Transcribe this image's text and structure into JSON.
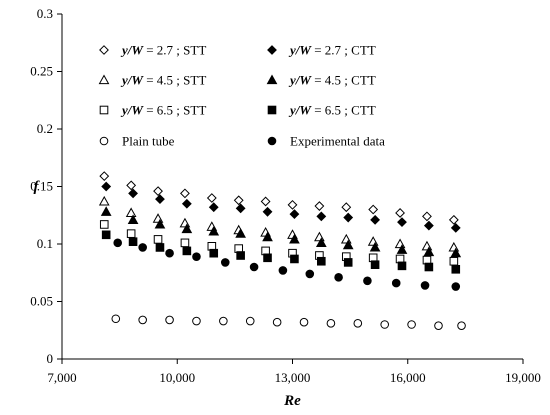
{
  "chart_data": {
    "type": "scatter",
    "title": "",
    "xlabel": "Re",
    "ylabel": "f",
    "xlim": [
      7000,
      19000
    ],
    "ylim": [
      0,
      0.3
    ],
    "x_ticks": [
      7000,
      10000,
      13000,
      16000,
      19000
    ],
    "x_tick_labels": [
      "7,000",
      "10,000",
      "13,000",
      "16,000",
      "19,000"
    ],
    "y_ticks": [
      0,
      0.05,
      0.1,
      0.15,
      0.2,
      0.25,
      0.3
    ],
    "y_tick_labels": [
      "0",
      "0.05",
      "0.1",
      "0.15",
      "0.2",
      "0.25",
      "0.3"
    ],
    "grid": false,
    "legend_position": "top-left",
    "series": [
      {
        "name": "y/W = 2.7 ;  STT",
        "ratio": "y/W",
        "label_rest": " = 2.7 ;  STT",
        "marker": "diamond-open",
        "x": [
          8100,
          8800,
          9500,
          10200,
          10900,
          11600,
          12300,
          13000,
          13700,
          14400,
          15100,
          15800,
          16500,
          17200
        ],
        "y": [
          0.159,
          0.151,
          0.146,
          0.144,
          0.14,
          0.138,
          0.137,
          0.134,
          0.133,
          0.132,
          0.13,
          0.127,
          0.124,
          0.121
        ]
      },
      {
        "name": "y/W = 2.7 ;  CTT",
        "ratio": "y/W",
        "label_rest": " = 2.7 ;  CTT",
        "marker": "diamond-filled",
        "x": [
          8150,
          8850,
          9550,
          10250,
          10950,
          11650,
          12350,
          13050,
          13750,
          14450,
          15150,
          15850,
          16550,
          17250
        ],
        "y": [
          0.15,
          0.144,
          0.139,
          0.135,
          0.132,
          0.131,
          0.128,
          0.126,
          0.124,
          0.123,
          0.121,
          0.119,
          0.116,
          0.114
        ]
      },
      {
        "name": "y/W = 4.5 ;  STT",
        "ratio": "y/W",
        "label_rest": " = 4.5 ;  STT",
        "marker": "triangle-open",
        "x": [
          8100,
          8800,
          9500,
          10200,
          10900,
          11600,
          12300,
          13000,
          13700,
          14400,
          15100,
          15800,
          16500,
          17200
        ],
        "y": [
          0.137,
          0.127,
          0.122,
          0.118,
          0.115,
          0.112,
          0.11,
          0.108,
          0.106,
          0.104,
          0.102,
          0.1,
          0.098,
          0.097
        ]
      },
      {
        "name": "y/W = 4.5 ;  CTT",
        "ratio": "y/W",
        "label_rest": " = 4.5 ;  CTT",
        "marker": "triangle-filled",
        "x": [
          8150,
          8850,
          9550,
          10250,
          10950,
          11650,
          12350,
          13050,
          13750,
          14450,
          15150,
          15850,
          16550,
          17250
        ],
        "y": [
          0.128,
          0.121,
          0.117,
          0.113,
          0.111,
          0.109,
          0.106,
          0.104,
          0.101,
          0.099,
          0.097,
          0.095,
          0.093,
          0.092
        ]
      },
      {
        "name": "y/W = 6.5 ;  STT",
        "ratio": "y/W",
        "label_rest": " = 6.5 ;  STT",
        "marker": "square-open",
        "x": [
          8100,
          8800,
          9500,
          10200,
          10900,
          11600,
          12300,
          13000,
          13700,
          14400,
          15100,
          15800,
          16500,
          17200
        ],
        "y": [
          0.117,
          0.109,
          0.104,
          0.101,
          0.098,
          0.096,
          0.094,
          0.092,
          0.09,
          0.089,
          0.088,
          0.087,
          0.086,
          0.085
        ]
      },
      {
        "name": "y/W = 6.5 ;  CTT",
        "ratio": "y/W",
        "label_rest": " = 6.5 ;  CTT",
        "marker": "square-filled",
        "x": [
          8150,
          8850,
          9550,
          10250,
          10950,
          11650,
          12350,
          13050,
          13750,
          14450,
          15150,
          15850,
          16550,
          17250
        ],
        "y": [
          0.108,
          0.102,
          0.097,
          0.094,
          0.092,
          0.09,
          0.088,
          0.087,
          0.085,
          0.084,
          0.082,
          0.081,
          0.08,
          0.078
        ]
      },
      {
        "name": "Plain tube",
        "marker": "circle-open",
        "x": [
          8400,
          9100,
          9800,
          10500,
          11200,
          11900,
          12600,
          13300,
          14000,
          14700,
          15400,
          16100,
          16800,
          17400
        ],
        "y": [
          0.035,
          0.034,
          0.034,
          0.033,
          0.033,
          0.033,
          0.032,
          0.032,
          0.031,
          0.031,
          0.03,
          0.03,
          0.029,
          0.029
        ]
      },
      {
        "name": "Experimental data",
        "marker": "circle-filled",
        "x": [
          8450,
          9100,
          9800,
          10500,
          11250,
          12000,
          12750,
          13450,
          14200,
          14950,
          15700,
          16450,
          17250
        ],
        "y": [
          0.101,
          0.097,
          0.092,
          0.089,
          0.084,
          0.08,
          0.077,
          0.074,
          0.071,
          0.068,
          0.066,
          0.064,
          0.063
        ]
      }
    ],
    "legend_layout": [
      [
        0,
        1
      ],
      [
        2,
        3
      ],
      [
        4,
        5
      ],
      [
        6,
        7
      ]
    ]
  }
}
